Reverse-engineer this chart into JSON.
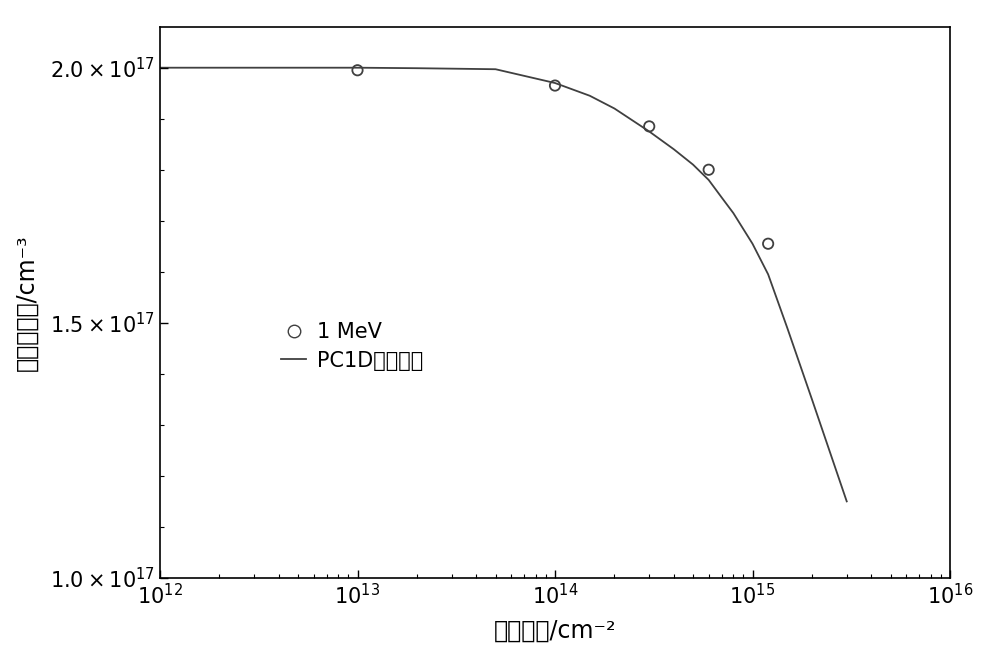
{
  "scatter_x": [
    10000000000000.0,
    100000000000000.0,
    300000000000000.0,
    600000000000000.0,
    1200000000000000.0
  ],
  "scatter_y": [
    1.995e+17,
    1.965e+17,
    1.885e+17,
    1.8e+17,
    1.655e+17
  ],
  "line_x": [
    1000000000000.0,
    2000000000000.0,
    5000000000000.0,
    10000000000000.0,
    20000000000000.0,
    50000000000000.0,
    100000000000000.0,
    150000000000000.0,
    200000000000000.0,
    300000000000000.0,
    400000000000000.0,
    500000000000000.0,
    600000000000000.0,
    700000000000000.0,
    800000000000000.0,
    1000000000000000.0,
    1200000000000000.0,
    1500000000000000.0,
    2000000000000000.0,
    3000000000000000.0
  ],
  "line_y": [
    2e+17,
    2e+17,
    2e+17,
    2e+17,
    1.999e+17,
    1.997e+17,
    1.97e+17,
    1.945e+17,
    1.92e+17,
    1.875e+17,
    1.84e+17,
    1.81e+17,
    1.78e+17,
    1.745e+17,
    1.715e+17,
    1.655e+17,
    1.595e+17,
    1.49e+17,
    1.35e+17,
    1.15e+17
  ],
  "xlim": [
    1000000000000.0,
    1e+16
  ],
  "ylim": [
    1e+17,
    2.08e+17
  ],
  "xlabel": "电子注量/cm⁻²",
  "ylabel": "载流子浓度/cm⁻³",
  "legend_scatter": "1 MeV",
  "legend_line": "PC1D拟合结果",
  "yticks": [
    1e+17,
    1.5e+17,
    2e+17
  ],
  "background_color": "#ffffff",
  "plot_bg_color": "#ffffff",
  "line_color": "#404040",
  "scatter_color": "#404040",
  "scatter_size": 55,
  "scatter_linewidth": 1.3,
  "line_width": 1.3,
  "xlabel_fontsize": 17,
  "ylabel_fontsize": 17,
  "tick_fontsize": 15,
  "legend_fontsize": 15
}
